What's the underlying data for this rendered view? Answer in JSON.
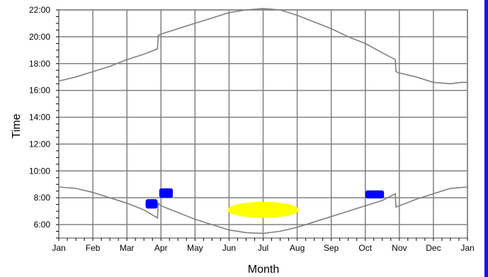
{
  "chart_data": {
    "type": "line",
    "title": "",
    "xlabel": "Month",
    "ylabel": "Time",
    "x_ticks": [
      "Jan",
      "Feb",
      "Mar",
      "Apr",
      "May",
      "Jun",
      "Jul",
      "Aug",
      "Sep",
      "Oct",
      "Nov",
      "Dec",
      "Jan"
    ],
    "y_ticks": [
      "6:00",
      "8:00",
      "10:00",
      "12:00",
      "14:00",
      "16:00",
      "18:00",
      "20:00",
      "22:00"
    ],
    "xlim_months": [
      0,
      12
    ],
    "ylim_hours": [
      5,
      22
    ],
    "grid": true,
    "colors": {
      "curve": "#808080",
      "grid": "#808080",
      "blue": "#0000ff",
      "yellow": "#ffff00",
      "edge": "#1414e6"
    },
    "series": [
      {
        "role": "upper-curve",
        "points": [
          [
            0.0,
            16.7
          ],
          [
            0.5,
            17.0
          ],
          [
            1.0,
            17.4
          ],
          [
            1.5,
            17.8
          ],
          [
            2.0,
            18.3
          ],
          [
            2.5,
            18.7
          ],
          [
            2.9,
            19.1
          ],
          [
            2.92,
            20.1
          ],
          [
            3.0,
            20.2
          ],
          [
            3.5,
            20.6
          ],
          [
            4.0,
            21.0
          ],
          [
            4.5,
            21.4
          ],
          [
            5.0,
            21.8
          ],
          [
            5.5,
            22.0
          ],
          [
            6.0,
            22.1
          ],
          [
            6.5,
            22.0
          ],
          [
            7.0,
            21.6
          ],
          [
            7.5,
            21.1
          ],
          [
            8.0,
            20.6
          ],
          [
            8.5,
            20.0
          ],
          [
            9.0,
            19.5
          ],
          [
            9.5,
            18.8
          ],
          [
            9.88,
            18.3
          ],
          [
            9.9,
            17.4
          ],
          [
            10.0,
            17.3
          ],
          [
            10.5,
            17.0
          ],
          [
            11.0,
            16.6
          ],
          [
            11.5,
            16.5
          ],
          [
            11.8,
            16.6
          ],
          [
            12.0,
            16.6
          ]
        ]
      },
      {
        "role": "lower-curve",
        "points": [
          [
            0.0,
            8.8
          ],
          [
            0.5,
            8.7
          ],
          [
            1.0,
            8.4
          ],
          [
            1.5,
            8.0
          ],
          [
            2.0,
            7.6
          ],
          [
            2.5,
            7.1
          ],
          [
            2.9,
            6.5
          ],
          [
            2.92,
            7.6
          ],
          [
            3.0,
            7.4
          ],
          [
            3.5,
            6.9
          ],
          [
            4.0,
            6.4
          ],
          [
            4.5,
            6.0
          ],
          [
            5.0,
            5.6
          ],
          [
            5.5,
            5.4
          ],
          [
            6.0,
            5.35
          ],
          [
            6.5,
            5.5
          ],
          [
            7.0,
            5.8
          ],
          [
            7.5,
            6.2
          ],
          [
            8.0,
            6.6
          ],
          [
            8.5,
            7.0
          ],
          [
            9.0,
            7.4
          ],
          [
            9.5,
            7.8
          ],
          [
            9.88,
            8.3
          ],
          [
            9.9,
            7.3
          ],
          [
            10.0,
            7.4
          ],
          [
            10.5,
            7.9
          ],
          [
            11.0,
            8.3
          ],
          [
            11.5,
            8.7
          ],
          [
            12.0,
            8.8
          ]
        ]
      }
    ],
    "blue_regions": [
      {
        "x_range": [
          2.55,
          2.9
        ],
        "y_range": [
          7.2,
          7.9
        ]
      },
      {
        "x_range": [
          2.95,
          3.35
        ],
        "y_range": [
          8.0,
          8.7
        ]
      },
      {
        "x_range": [
          9.0,
          9.55
        ],
        "y_range": [
          7.95,
          8.55
        ]
      }
    ],
    "yellow_region": {
      "x_center": 6.0,
      "y_center": 7.1,
      "x_half_width": 1.05,
      "y_half_height": 0.6
    }
  }
}
